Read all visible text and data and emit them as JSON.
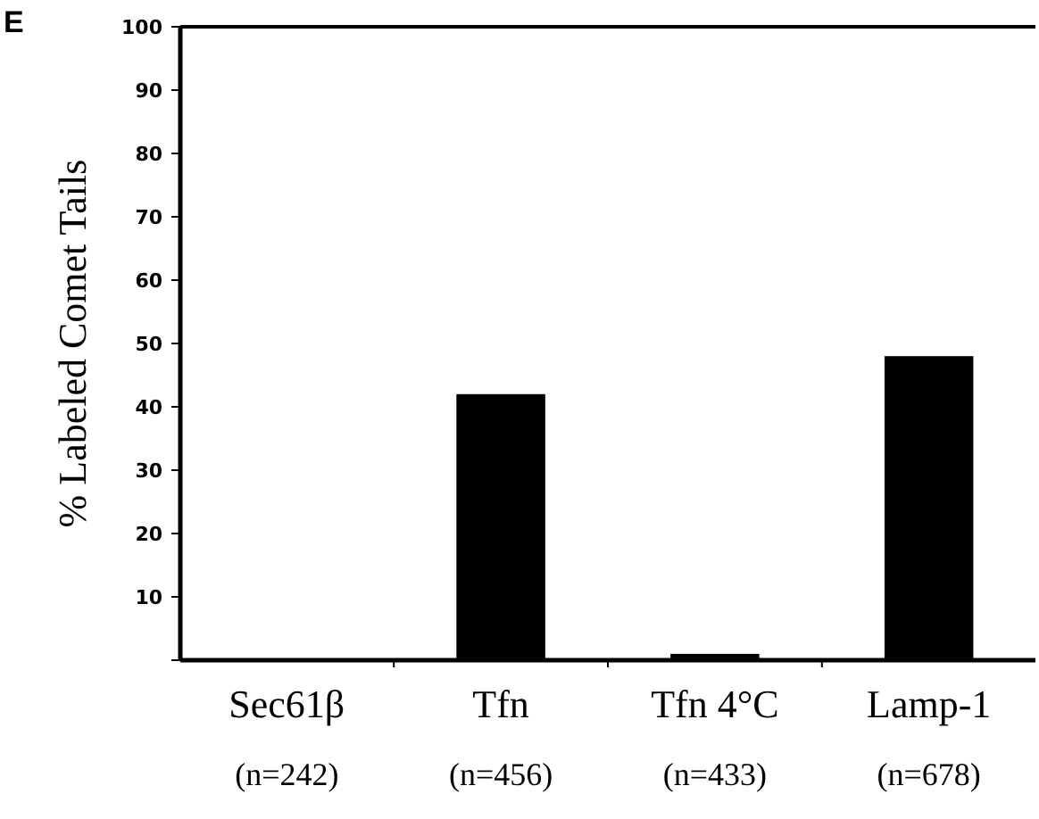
{
  "chart_data": {
    "type": "bar",
    "title": "E",
    "ylabel": "% Labeled Comet Tails",
    "categories": [
      "Sec61β\n(n=242)",
      "Tfn\n(n=456)",
      "Tfn 4°C\n(n=433)",
      "Lamp-1\n(n=678)"
    ],
    "values": [
      0,
      42,
      1,
      48
    ],
    "color": "#000000",
    "ylim": [
      0,
      100
    ],
    "yticks": [
      {
        "value": 0,
        "label": null
      },
      10,
      20,
      30,
      40,
      50,
      60,
      70,
      80,
      90,
      100
    ],
    "grid": false
  }
}
